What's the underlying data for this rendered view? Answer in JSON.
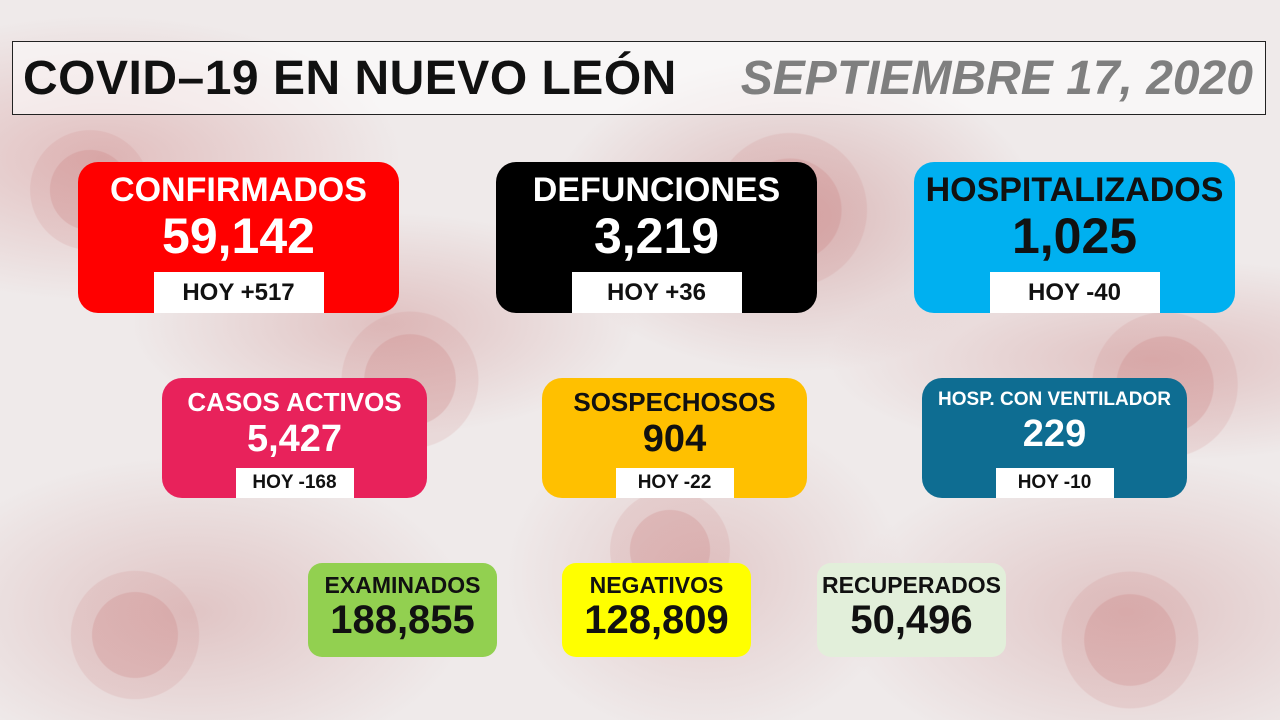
{
  "header": {
    "title": "COVID–19 EN NUEVO LEÓN",
    "date": "SEPTIEMBRE 17, 2020"
  },
  "row1": [
    {
      "label": "CONFIRMADOS",
      "value": "59,142",
      "hoy": "HOY +517",
      "color": "#ff0000",
      "text_color": "#ffffff"
    },
    {
      "label": "DEFUNCIONES",
      "value": "3,219",
      "hoy": "HOY +36",
      "color": "#000000",
      "text_color": "#ffffff"
    },
    {
      "label": "HOSPITALIZADOS",
      "value": "1,025",
      "hoy": "HOY -40",
      "color": "#00b0f0",
      "text_color": "#111111"
    }
  ],
  "row2": [
    {
      "label": "CASOS ACTIVOS",
      "value": "5,427",
      "hoy": "HOY -168",
      "color": "#e8225b",
      "text_color": "#ffffff"
    },
    {
      "label": "SOSPECHOSOS",
      "value": "904",
      "hoy": "HOY -22",
      "color": "#ffc000",
      "text_color": "#111111"
    },
    {
      "label": "HOSP. CON VENTILADOR",
      "value": "229",
      "hoy": "HOY -10",
      "color": "#0e6d92",
      "text_color": "#ffffff"
    }
  ],
  "row3": [
    {
      "label": "EXAMINADOS",
      "value": "188,855",
      "color": "#92d050",
      "text_color": "#111111"
    },
    {
      "label": "NEGATIVOS",
      "value": "128,809",
      "color": "#ffff00",
      "text_color": "#111111"
    },
    {
      "label": "RECUPERADOS",
      "value": "50,496",
      "color": "#e2efda",
      "text_color": "#111111"
    }
  ]
}
